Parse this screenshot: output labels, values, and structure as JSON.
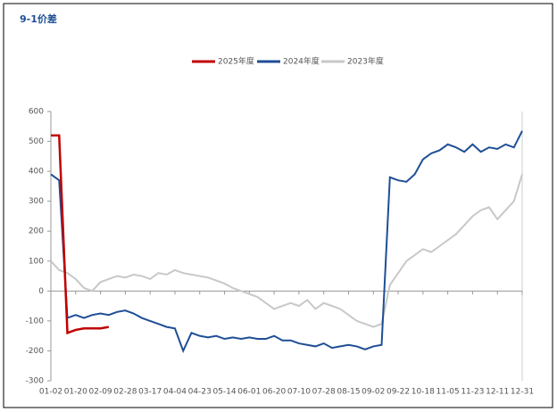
{
  "chart_data": {
    "type": "line",
    "title": "9-1价差",
    "categories": [
      "01-02",
      null,
      null,
      "01-20",
      null,
      null,
      "02-09",
      null,
      null,
      "02-28",
      null,
      null,
      "03-17",
      null,
      null,
      "04-04",
      null,
      null,
      "04-23",
      null,
      null,
      "05-14",
      null,
      null,
      "06-01",
      null,
      null,
      "06-20",
      null,
      null,
      "07-10",
      null,
      null,
      "07-28",
      null,
      null,
      "08-15",
      null,
      null,
      "09-02",
      null,
      null,
      "09-22",
      null,
      null,
      "10-18",
      null,
      null,
      "11-05",
      null,
      null,
      "11-23",
      null,
      null,
      "12-11",
      null,
      null,
      "12-31"
    ],
    "series": [
      {
        "name": "2025年度",
        "color": "#c00000",
        "values": [
          520,
          520,
          -140,
          -130,
          -125,
          -125,
          -125,
          -120,
          null,
          null,
          null,
          null,
          null,
          null,
          null,
          null,
          null,
          null,
          null,
          null,
          null,
          null,
          null,
          null,
          null,
          null,
          null,
          null,
          null,
          null,
          null,
          null,
          null,
          null,
          null,
          null,
          null,
          null,
          null,
          null,
          null,
          null,
          null,
          null,
          null,
          null,
          null,
          null,
          null,
          null,
          null,
          null,
          null,
          null,
          null,
          null,
          null,
          null
        ]
      },
      {
        "name": "2024年度",
        "color": "#1f4e96",
        "values": [
          390,
          370,
          -90,
          -80,
          -90,
          -80,
          -75,
          -80,
          -70,
          -65,
          -75,
          -90,
          -100,
          -110,
          -120,
          -125,
          -200,
          -140,
          -150,
          -155,
          -150,
          -160,
          -155,
          -160,
          -155,
          -160,
          -160,
          -150,
          -165,
          -165,
          -175,
          -180,
          -185,
          -175,
          -190,
          -185,
          -180,
          -185,
          -195,
          -185,
          -180,
          380,
          370,
          365,
          390,
          440,
          460,
          470,
          490,
          480,
          465,
          490,
          465,
          480,
          475,
          490,
          480,
          535
        ]
      },
      {
        "name": "2023年度",
        "color": "#c8c8c8",
        "values": [
          100,
          70,
          60,
          40,
          10,
          0,
          30,
          40,
          50,
          45,
          55,
          50,
          40,
          60,
          55,
          70,
          60,
          55,
          50,
          45,
          35,
          25,
          10,
          0,
          -10,
          -20,
          -40,
          -60,
          -50,
          -40,
          -50,
          -30,
          -60,
          -40,
          -50,
          -60,
          -80,
          -100,
          -110,
          -120,
          -110,
          20,
          60,
          100,
          120,
          140,
          130,
          150,
          170,
          190,
          220,
          250,
          270,
          280,
          240,
          270,
          300,
          390
        ]
      }
    ],
    "ylim": [
      -300,
      600
    ],
    "yticks": [
      -300,
      -200,
      -100,
      0,
      100,
      200,
      300,
      400,
      500,
      600
    ]
  }
}
